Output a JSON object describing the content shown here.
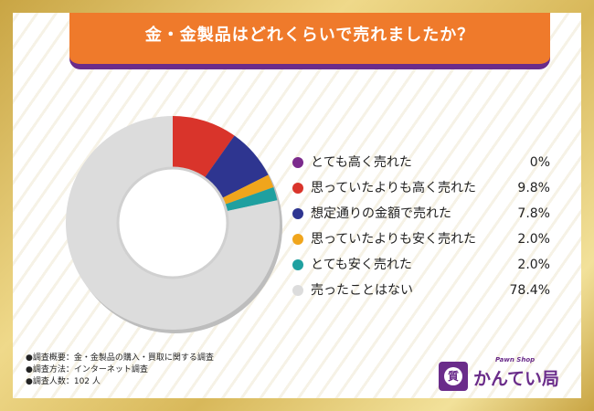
{
  "header": {
    "title": "金・金製品はどれくらいで売れましたか？"
  },
  "chart_data": {
    "type": "pie",
    "donut": true,
    "categories": [
      "とても高く売れた",
      "思っていたよりも高く売れた",
      "想定通りの金額で売れた",
      "思っていたよりも安く売れた",
      "とても安く売れた",
      "売ったことはない"
    ],
    "values": [
      0,
      9.8,
      7.8,
      2.0,
      2.0,
      78.4
    ],
    "value_labels": [
      "0%",
      "9.8%",
      "7.8%",
      "2.0%",
      "2.0%",
      "78.4%"
    ],
    "colors": [
      "#7b2a8c",
      "#d9342b",
      "#2e3590",
      "#f0a51c",
      "#1fa0a0",
      "#dcdcdc"
    ],
    "legend_position": "right"
  },
  "notes": [
    "●調査概要：金・金製品の購入・買取に関する調査",
    "●調査方法：インターネット調査",
    "●調査人数：102 人"
  ],
  "logo": {
    "main": "かんてい局",
    "sub": "Pawn Shop",
    "badge": "質"
  }
}
